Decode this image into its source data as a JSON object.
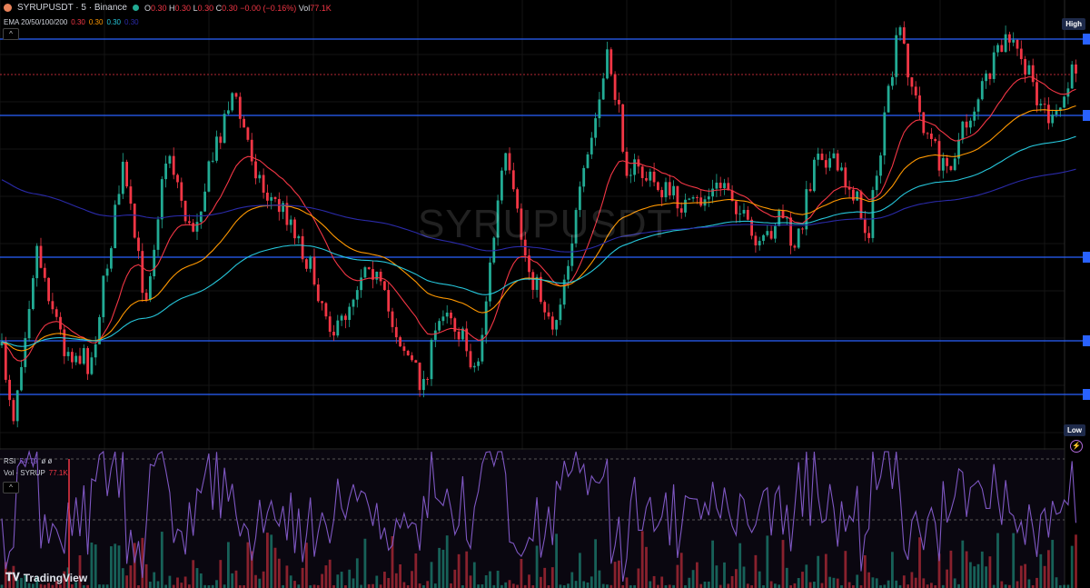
{
  "header": {
    "symbol": "SYRUPUSDT · 5 · Binance",
    "ohlc": {
      "open_label": "O",
      "open": "0.30",
      "high_label": "H",
      "high": "0.30",
      "low_label": "L",
      "low": "0.30",
      "close_label": "C",
      "close": "0.30",
      "change": "−0.00 (−0.16%)",
      "vol_label": "Vol",
      "vol": "77.1K"
    },
    "ema": {
      "label": "EMA 20/50/100/200",
      "v20": "0.30",
      "v50": "0.30",
      "v100": "0.30",
      "v200": "0.30"
    }
  },
  "watermark": "SYRUPUSDT",
  "price_scale": {
    "high_label": "High",
    "low_label": "Low"
  },
  "indicators": {
    "rsi": {
      "label": "RSI",
      "value": "54.79",
      "extra": "ø ø"
    },
    "volume": {
      "label": "Vol · SYRUP",
      "value": "77.1K"
    }
  },
  "branding": "TradingView",
  "colors": {
    "up": "#22ab94",
    "down": "#f23645",
    "ema20": "#f23645",
    "ema50": "#ff9800",
    "ema100": "#26c6da",
    "ema200": "#2a2aa8",
    "levels": "#2962ff",
    "rsi": "#7e57c2"
  },
  "icons": [
    "collapse-chevron-icon",
    "lightning-icon",
    "tradingview-logo-icon"
  ]
}
